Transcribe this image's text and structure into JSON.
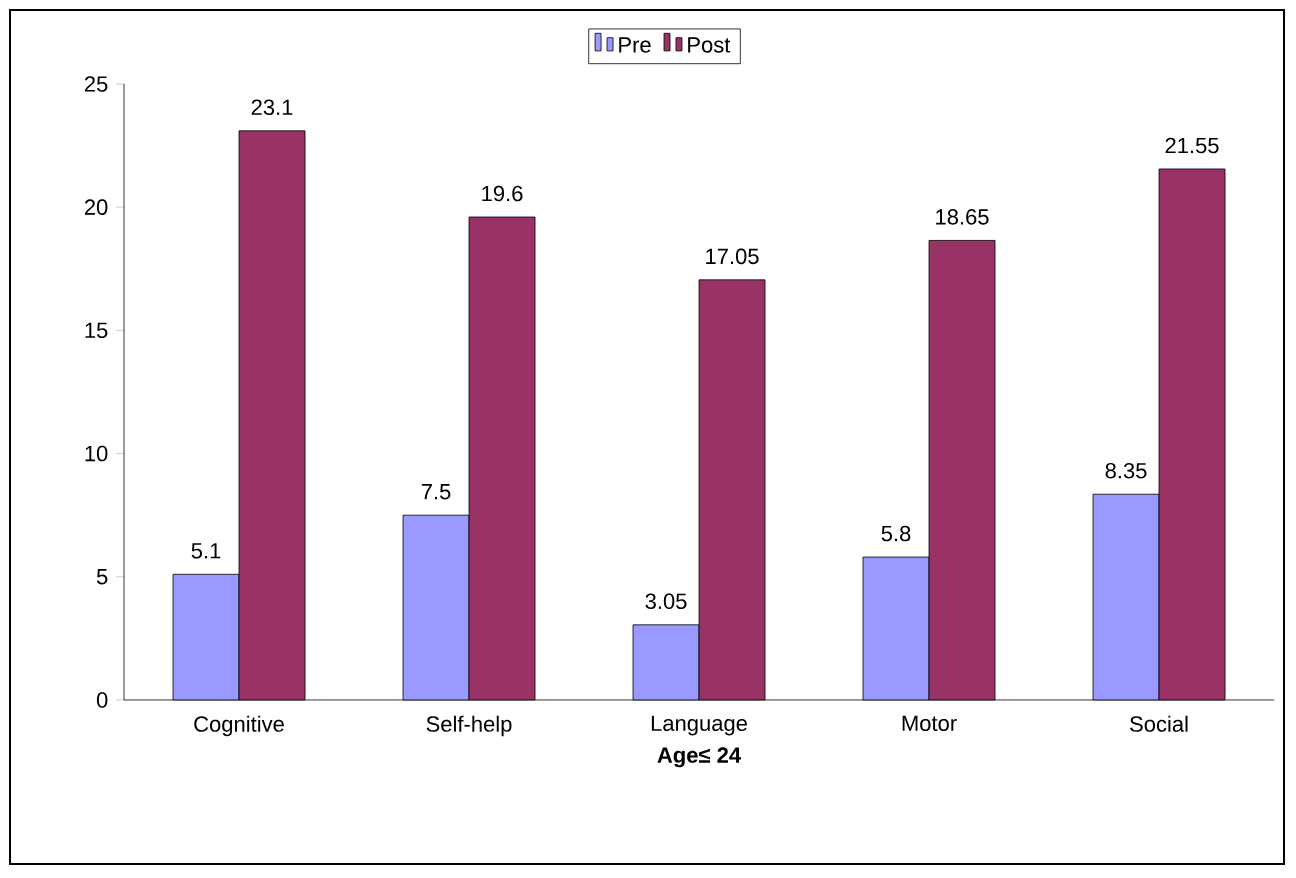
{
  "chart_data": {
    "type": "bar",
    "xlabel": "**Age≤ 24**",
    "categories": [
      "Cognitive",
      "Self-help",
      "Language",
      "Motor",
      "Social"
    ],
    "series": [
      {
        "name": "Pre",
        "color": "#9999ff",
        "values": [
          5.1,
          7.5,
          3.05,
          5.8,
          8.35
        ]
      },
      {
        "name": "Post",
        "color": "#993366",
        "values": [
          23.1,
          19.6,
          17.05,
          18.65,
          21.55
        ]
      }
    ],
    "ylim": [
      0,
      25
    ],
    "yticks": [
      0,
      5,
      10,
      15,
      20,
      25
    ],
    "data_labels": true,
    "legend": "top",
    "grid": false
  }
}
